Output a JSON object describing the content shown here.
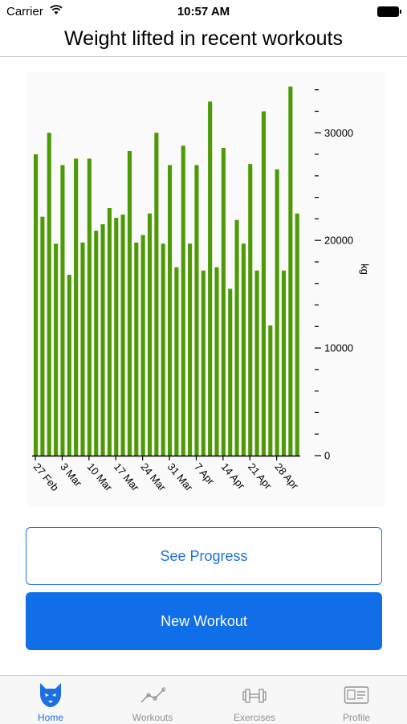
{
  "status_bar": {
    "carrier": "Carrier",
    "time": "10:57 AM"
  },
  "header": {
    "title": "Weight lifted in recent workouts"
  },
  "chart_data": {
    "type": "bar",
    "title": "",
    "xlabel": "",
    "ylabel": "kg",
    "ylim": [
      0,
      34500
    ],
    "y_ticks": [
      0,
      10000,
      20000,
      30000
    ],
    "y_minor_step": 2000,
    "x_tick_labels": [
      "27 Feb",
      "3 Mar",
      "10 Mar",
      "17 Mar",
      "24 Mar",
      "31 Mar",
      "7 Apr",
      "14 Apr",
      "21 Apr",
      "28 Apr"
    ],
    "values": [
      28000,
      22200,
      30000,
      19700,
      27000,
      16800,
      27600,
      19800,
      27600,
      20900,
      21500,
      23000,
      22100,
      22400,
      28300,
      19800,
      20500,
      22500,
      30000,
      19700,
      27000,
      17500,
      28800,
      19700,
      27000,
      17200,
      32900,
      17500,
      28600,
      15500,
      21900,
      19700,
      27100,
      17200,
      32000,
      12100,
      26600,
      17200,
      34300,
      22500
    ],
    "bar_color": "#4e9a06",
    "grid": false
  },
  "buttons": {
    "see_progress": "See Progress",
    "new_workout": "New Workout"
  },
  "tabs": [
    {
      "label": "Home",
      "icon": "wolf-icon",
      "active": true
    },
    {
      "label": "Workouts",
      "icon": "trend-line-icon",
      "active": false
    },
    {
      "label": "Exercises",
      "icon": "dumbbell-icon",
      "active": false
    },
    {
      "label": "Profile",
      "icon": "id-card-icon",
      "active": false
    }
  ],
  "colors": {
    "accent": "#1d6fe4",
    "primary_button": "#0f6ee8",
    "inactive_tab": "#929292"
  }
}
